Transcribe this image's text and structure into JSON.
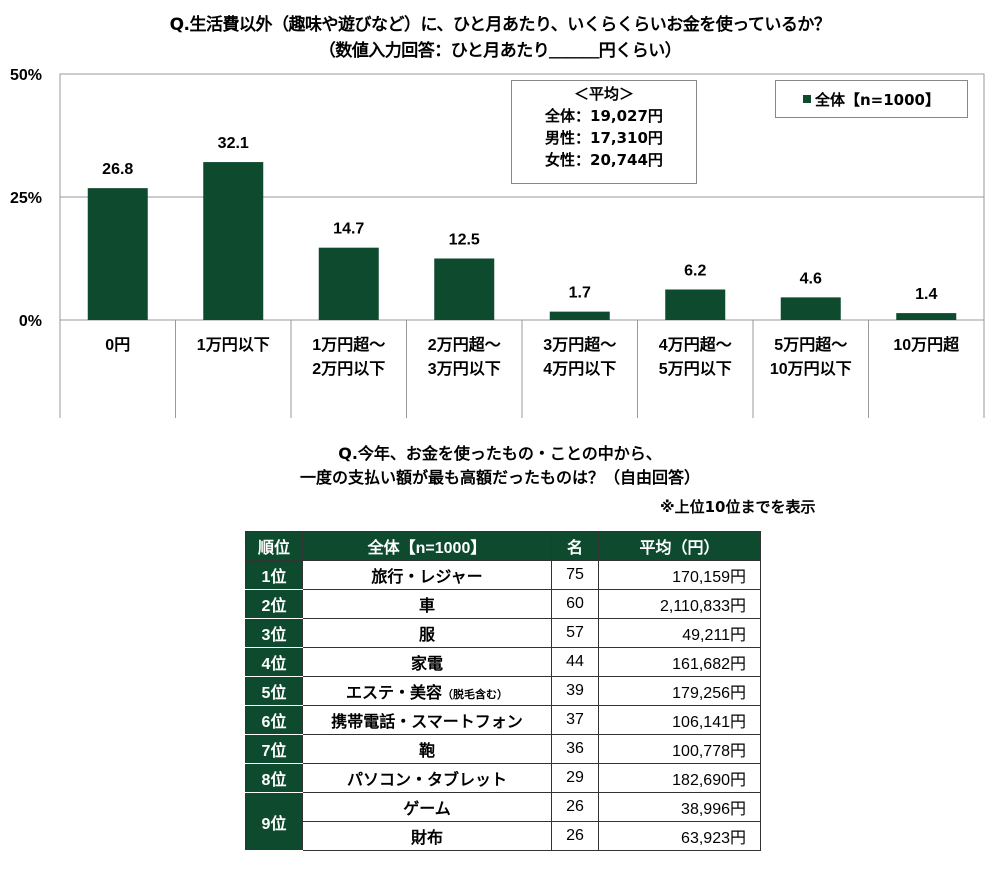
{
  "title_q1": "Q.生活費以外（趣味や遊びなど）に、ひと月あたり、いくらくらいお金を使っているか？",
  "subtitle_q1": "（数値入力回答：ひと月あたり＿＿＿円くらい）",
  "average_box": {
    "heading": "＜平均＞",
    "lines": [
      "全体：19,027円",
      "男性：17,310円",
      "女性：20,744円"
    ]
  },
  "chart_data": {
    "type": "bar",
    "title": "Q.生活費以外（趣味や遊びなど）に、ひと月あたり、いくらくらいお金を使っているか？",
    "categories": [
      "0円",
      "1万円以下",
      "1万円超～\n2万円以下",
      "2万円超～\n3万円以下",
      "3万円超～\n4万円以下",
      "4万円超～\n5万円以下",
      "5万円超～\n10万円以下",
      "10万円超"
    ],
    "series": [
      {
        "name": "全体【n=1000】",
        "values": [
          26.8,
          32.1,
          14.7,
          12.5,
          1.7,
          6.2,
          4.6,
          1.4
        ],
        "color": "#0d4a2e"
      }
    ],
    "yticks": [
      "0%",
      "25%",
      "50%"
    ],
    "ylim": [
      0,
      50
    ],
    "grid": true,
    "legend": "top-right"
  },
  "title_q2": [
    "Q.今年、お金を使ったもの・ことの中から、",
    "一度の支払い額が最も高額だったものは？（自由回答）"
  ],
  "note": "※上位10位までを表示",
  "table": {
    "headers": [
      "順位",
      "全体【n=1000】",
      "名",
      "平均（円）"
    ],
    "rows": [
      {
        "rank": "1位",
        "item": "旅行・レジャー",
        "count": "75",
        "avg": "170,159円"
      },
      {
        "rank": "2位",
        "item": "車",
        "count": "60",
        "avg": "2,110,833円"
      },
      {
        "rank": "3位",
        "item": "服",
        "count": "57",
        "avg": "49,211円"
      },
      {
        "rank": "4位",
        "item": "家電",
        "count": "44",
        "avg": "161,682円"
      },
      {
        "rank": "5位",
        "item": "エステ・美容",
        "item_note": "（脱毛含む）",
        "count": "39",
        "avg": "179,256円"
      },
      {
        "rank": "6位",
        "item": "携帯電話・スマートフォン",
        "count": "37",
        "avg": "106,141円"
      },
      {
        "rank": "7位",
        "item": "鞄",
        "count": "36",
        "avg": "100,778円"
      },
      {
        "rank": "8位",
        "item": "パソコン・タブレット",
        "count": "29",
        "avg": "182,690円"
      },
      {
        "rank": "9位",
        "item": "ゲーム",
        "count": "26",
        "avg": "38,996円"
      },
      {
        "rank": "9位",
        "item": "財布",
        "count": "26",
        "avg": "63,923円"
      }
    ]
  }
}
